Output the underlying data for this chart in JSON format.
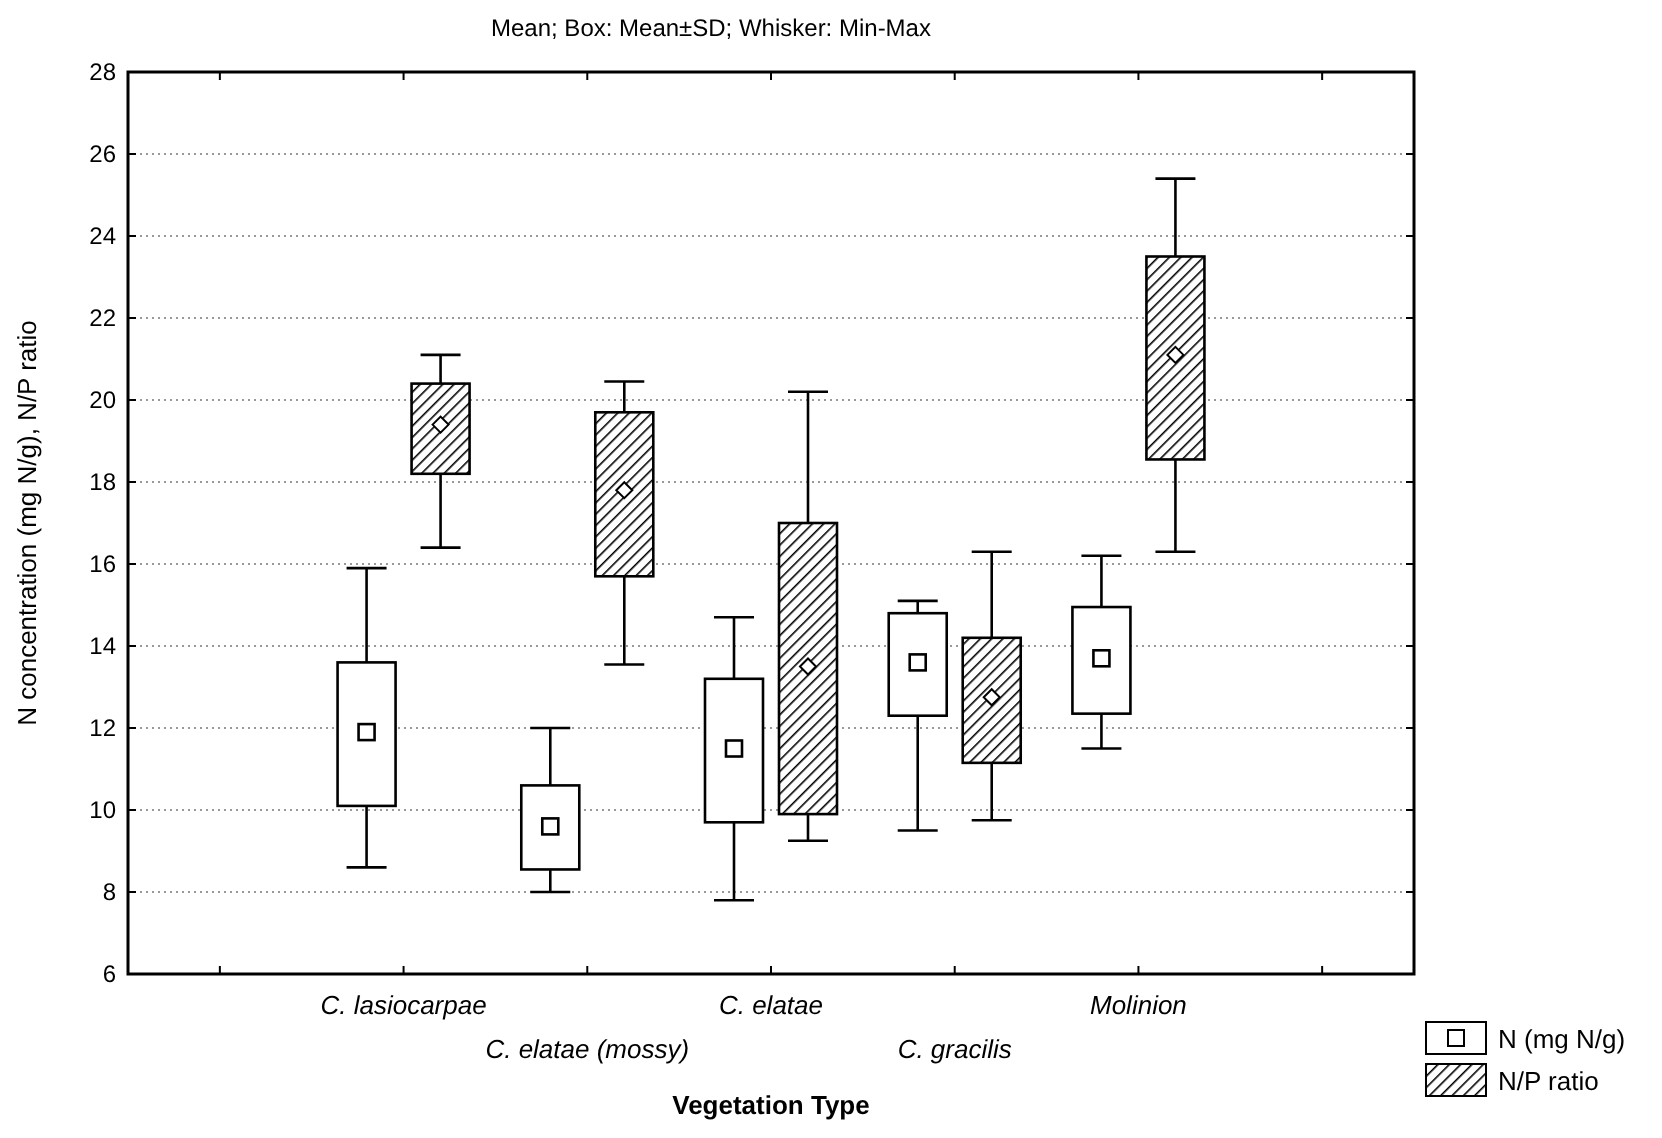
{
  "chart_data": {
    "type": "box",
    "title": "Mean; Box: Mean±SD; Whisker: Min-Max",
    "xlabel": "Vegetation Type",
    "ylabel": "N concentration (mg N/g), N/P ratio",
    "categories": [
      "C. lasiocarpae",
      "C. elatae (mossy)",
      "C. elatae",
      "C. gracilis",
      "Molinion"
    ],
    "ylim": [
      6,
      28
    ],
    "yticks": [
      6,
      8,
      10,
      12,
      14,
      16,
      18,
      20,
      22,
      24,
      26,
      28
    ],
    "grid": "y",
    "legend": "bottom right",
    "series": [
      {
        "name": "N (mg N/g)",
        "color": "#ffffff",
        "boxes": [
          {
            "low": 8.6,
            "q1": 10.1,
            "mean": 11.9,
            "q3": 13.6,
            "high": 15.9
          },
          {
            "low": 8.0,
            "q1": 8.55,
            "mean": 9.6,
            "q3": 10.6,
            "high": 12.0
          },
          {
            "low": 7.8,
            "q1": 9.7,
            "mean": 11.5,
            "q3": 13.2,
            "high": 14.7
          },
          {
            "low": 9.5,
            "q1": 12.3,
            "mean": 13.6,
            "q3": 14.8,
            "high": 15.1
          },
          {
            "low": 11.5,
            "q1": 12.35,
            "mean": 13.7,
            "q3": 14.95,
            "high": 16.2
          }
        ]
      },
      {
        "name": "N/P ratio",
        "color": "#000000",
        "boxes": [
          {
            "low": 16.4,
            "q1": 18.2,
            "mean": 19.4,
            "q3": 20.4,
            "high": 21.1
          },
          {
            "low": 13.55,
            "q1": 15.7,
            "mean": 17.8,
            "q3": 19.7,
            "high": 20.45
          },
          {
            "low": 9.25,
            "q1": 9.9,
            "mean": 13.5,
            "q3": 17.0,
            "high": 20.2
          },
          {
            "low": 9.75,
            "q1": 11.15,
            "mean": 12.75,
            "q3": 14.2,
            "high": 16.3
          },
          {
            "low": 16.3,
            "q1": 18.55,
            "mean": 21.1,
            "q3": 23.5,
            "high": 25.4
          }
        ]
      }
    ]
  }
}
